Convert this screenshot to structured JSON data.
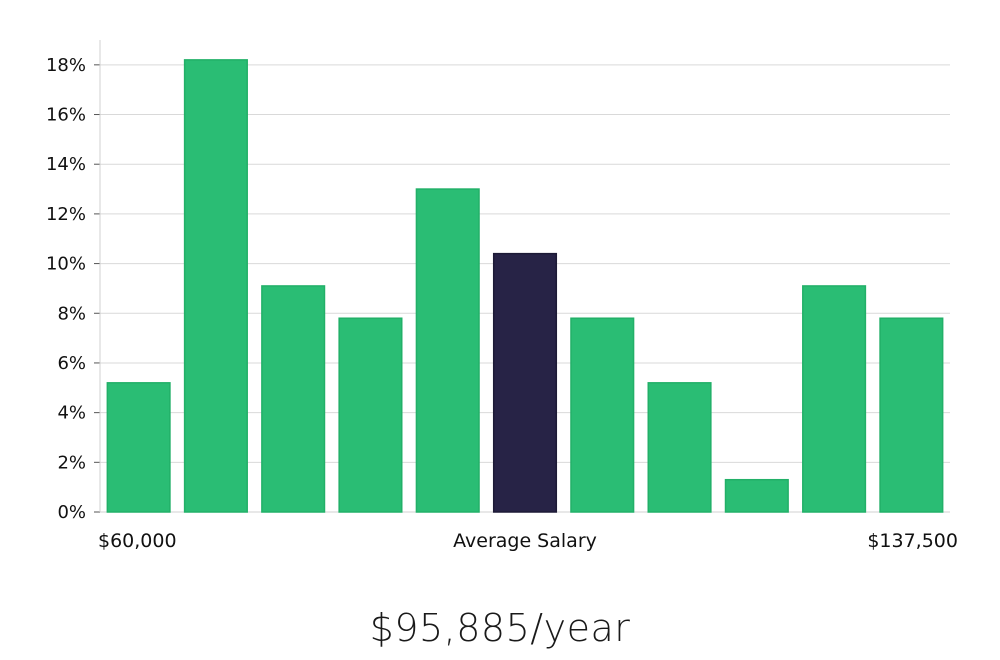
{
  "chart_data": {
    "type": "bar",
    "categories": [
      "1",
      "2",
      "3",
      "4",
      "5",
      "6",
      "7",
      "8",
      "9",
      "10",
      "11"
    ],
    "values": [
      5.2,
      18.2,
      9.1,
      7.8,
      13.0,
      10.4,
      7.8,
      5.2,
      1.3,
      9.1,
      7.8
    ],
    "highlight_index": 5,
    "ylim": [
      0,
      19
    ],
    "yticks": [
      0,
      2,
      4,
      6,
      8,
      10,
      12,
      14,
      16,
      18
    ],
    "ytick_format": "percent",
    "grid": true,
    "x_labels": {
      "left": "$60,000",
      "center": "Average Salary",
      "right": "$137,500"
    },
    "colors": {
      "bar": "#2abd74",
      "highlight": "#272346",
      "grid": "#d9d9d9"
    }
  },
  "salary": {
    "average": "$95,885/year"
  }
}
